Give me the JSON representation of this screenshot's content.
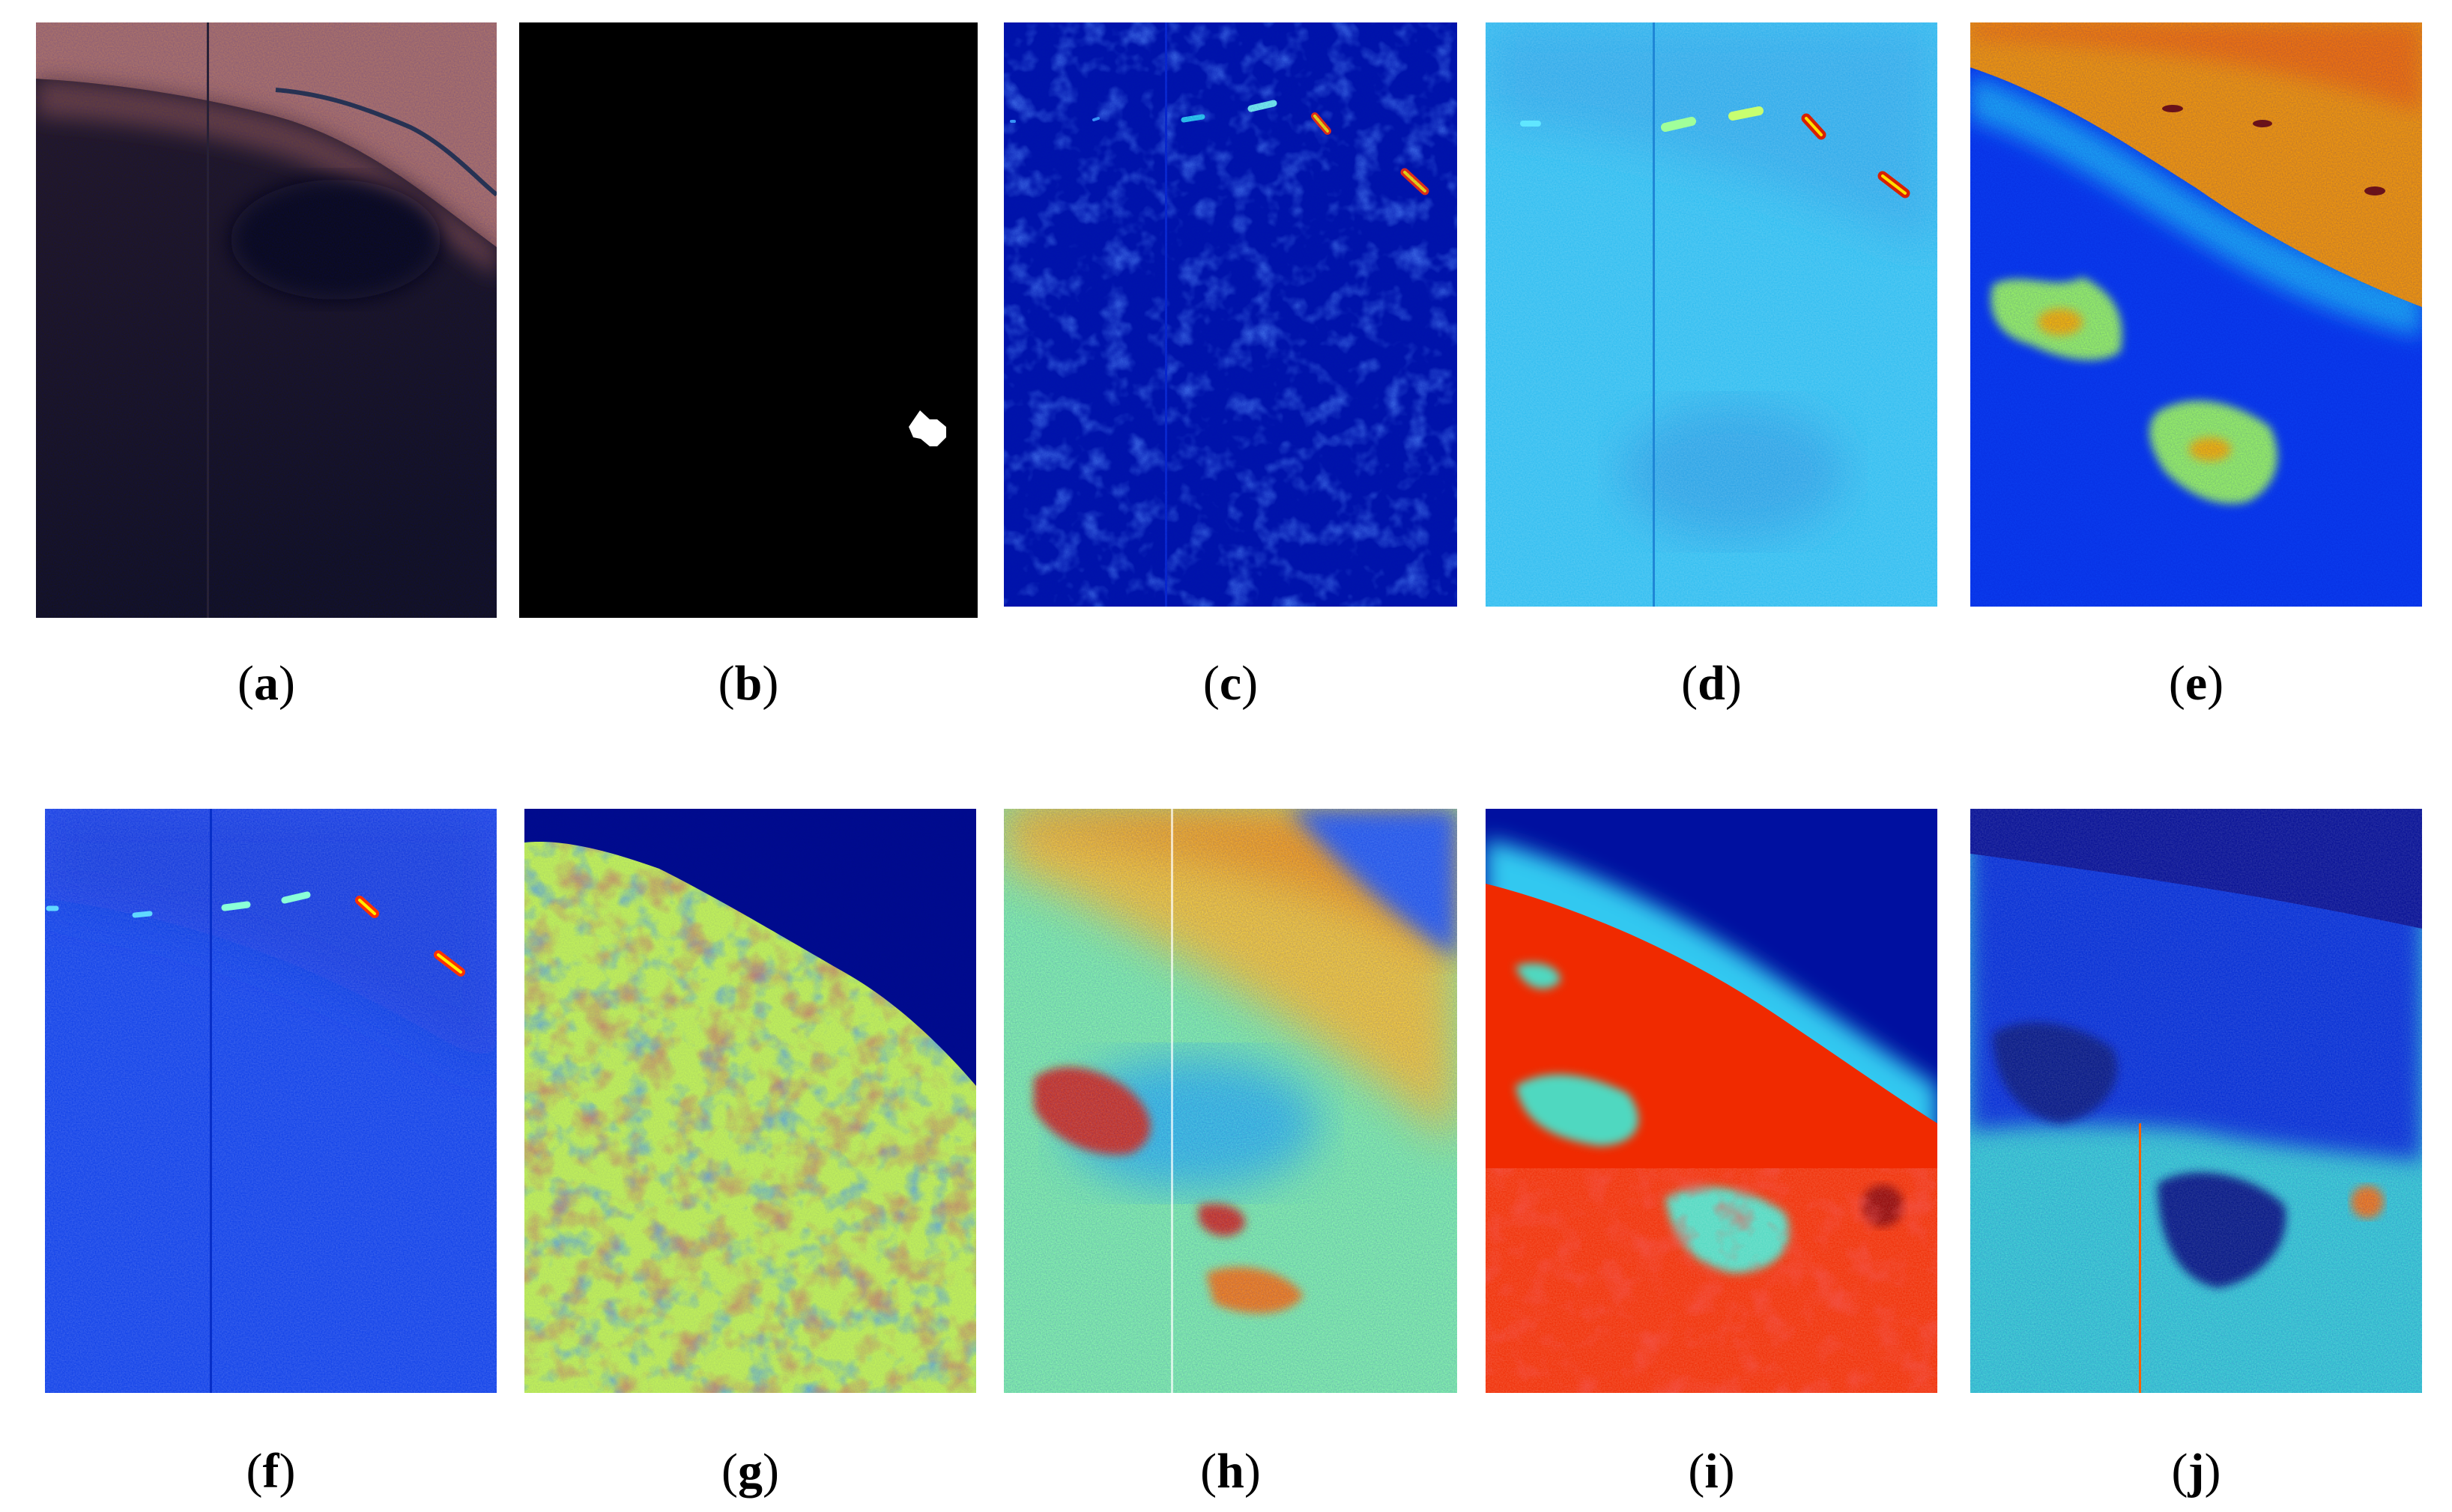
{
  "panels": [
    {
      "label": "a",
      "colormap": "rgb"
    },
    {
      "label": "b",
      "colormap": "binary"
    },
    {
      "label": "c",
      "colormap": "jet"
    },
    {
      "label": "d",
      "colormap": "jet"
    },
    {
      "label": "e",
      "colormap": "jet"
    },
    {
      "label": "f",
      "colormap": "jet"
    },
    {
      "label": "g",
      "colormap": "jet"
    },
    {
      "label": "h",
      "colormap": "jet"
    },
    {
      "label": "i",
      "colormap": "jet"
    },
    {
      "label": "j",
      "colormap": "jet"
    }
  ]
}
